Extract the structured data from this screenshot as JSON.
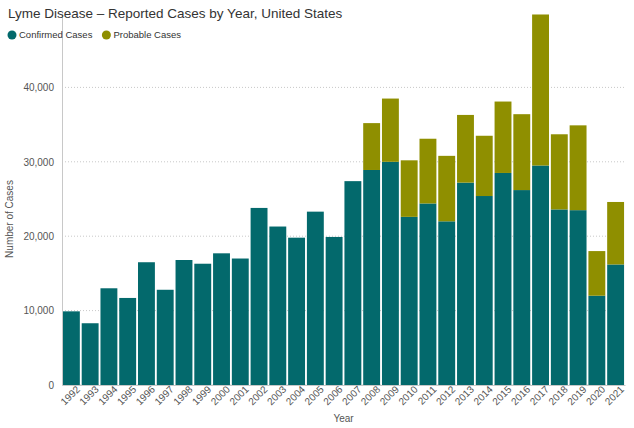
{
  "chart_data": {
    "type": "bar",
    "title": "Lyme Disease – Reported Cases by Year, United States",
    "x_label": "Year",
    "y_label": "Number of Cases",
    "categories": [
      "1992",
      "1993",
      "1994",
      "1995",
      "1996",
      "1997",
      "1998",
      "1999",
      "2000",
      "2001",
      "2002",
      "2003",
      "2004",
      "2005",
      "2006",
      "2007",
      "2008",
      "2009",
      "2010",
      "2011",
      "2012",
      "2013",
      "2014",
      "2015",
      "2016",
      "2017",
      "2018",
      "2019",
      "2020",
      "2021"
    ],
    "series": [
      {
        "name": "Confirmed Cases",
        "color": "#03696c",
        "values": [
          9900,
          8300,
          13000,
          11700,
          16500,
          12800,
          16800,
          16300,
          17700,
          17000,
          23800,
          21300,
          19800,
          23300,
          19900,
          27400,
          28900,
          30000,
          22600,
          24400,
          22000,
          27200,
          25400,
          28500,
          26200,
          29500,
          23600,
          23500,
          12000,
          16200
        ]
      },
      {
        "name": "Probable Cases",
        "color": "#8f8f00",
        "values": [
          null,
          null,
          null,
          null,
          null,
          null,
          null,
          null,
          null,
          null,
          null,
          null,
          null,
          null,
          null,
          null,
          6300,
          8500,
          7600,
          8700,
          8800,
          9100,
          8100,
          9600,
          10200,
          20300,
          10100,
          11400,
          6000,
          8400
        ]
      }
    ],
    "ylim": [
      0,
      50000
    ],
    "yticks": [
      0,
      {
        "value": 10000,
        "label": "10,000"
      },
      {
        "value": 20000,
        "label": "20,000"
      },
      {
        "value": 30000,
        "label": "30,000"
      },
      {
        "value": 40000,
        "label": "40,000"
      }
    ],
    "stacked": true,
    "grid": true,
    "legend": "top-left"
  }
}
